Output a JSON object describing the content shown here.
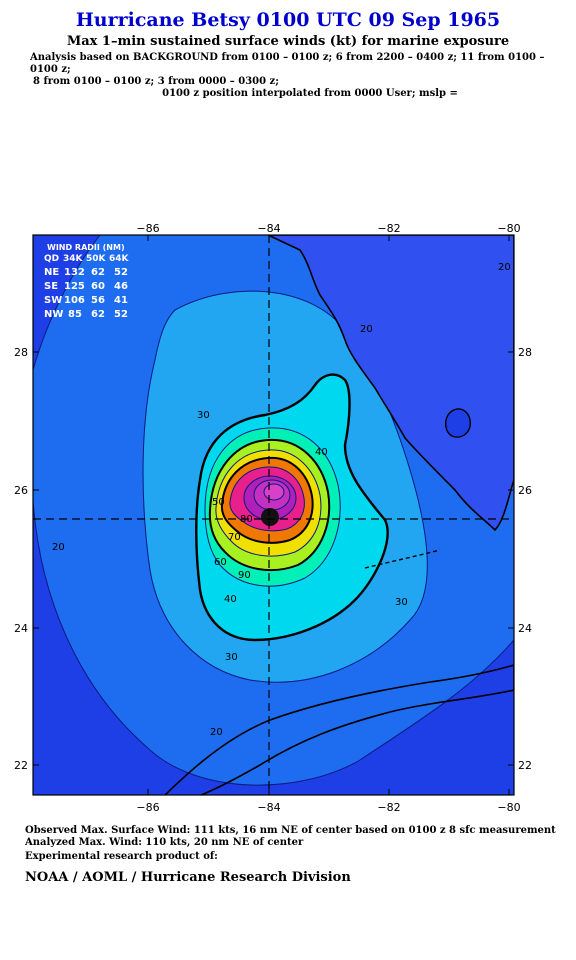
{
  "header": {
    "title": "Hurricane Betsy 0100 UTC 09 Sep 1965",
    "subtitle": "Max 1–min sustained surface winds (kt) for marine exposure",
    "analysis_line1": "Analysis based on  BACKGROUND from 0100 – 0100 z;  6 from 2200 – 0400 z;  11 from 0100 – 0100 z;",
    "analysis_line2": "8 from 0100 – 0100 z;  3 from 0000 – 0300 z;",
    "analysis_line3": "0100 z position interpolated from 0000 User; mslp ="
  },
  "map": {
    "lon_ticks": [
      "−86",
      "−84",
      "−82",
      "−80"
    ],
    "lat_ticks": [
      "28",
      "26",
      "24",
      "22"
    ],
    "wind_radii_table": {
      "title": "WIND RADII (NM)",
      "columns": [
        "QD",
        "34K",
        "50K",
        "64K"
      ],
      "rows": [
        [
          "NE",
          "132",
          "62",
          "52"
        ],
        [
          "SE",
          "125",
          "60",
          "46"
        ],
        [
          "SW",
          "106",
          "56",
          "41"
        ],
        [
          "NW",
          "85",
          "62",
          "52"
        ]
      ]
    },
    "contour_labels": [
      "20",
      "20",
      "20",
      "20",
      "30",
      "30",
      "30",
      "40",
      "40",
      "50",
      "60",
      "70",
      "80",
      "90"
    ],
    "colors": {
      "ocean_deep": "#1f3fe6",
      "band_20": "#1e6cf0",
      "band_30": "#22a6f2",
      "band_40": "#00d8f0",
      "band_50": "#00f0b8",
      "band_60": "#a8f020",
      "band_70": "#f0e000",
      "band_80": "#f07800",
      "band_90": "#e8208c",
      "band_100": "#b020b8",
      "land": "#3050f0"
    }
  },
  "footer": {
    "observed": "Observed Max. Surface Wind: 111 kts, 16 nm NE of center based on 0100 z 8 sfc measurement",
    "analyzed": "Analyzed Max. Wind: 110 kts, 20 nm NE of center",
    "experimental": "Experimental research product of:",
    "org": "NOAA / AOML / Hurricane Research Division"
  }
}
